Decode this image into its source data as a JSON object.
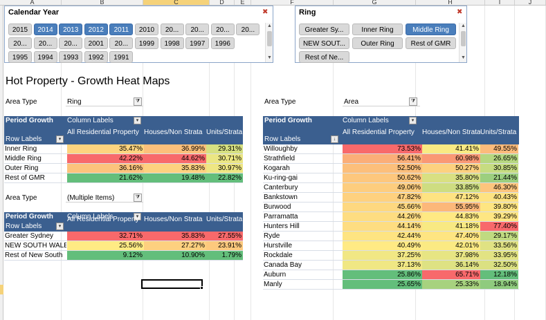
{
  "columns": [
    "A",
    "B",
    "C",
    "D",
    "E",
    "F",
    "G",
    "H",
    "I",
    "J"
  ],
  "calendar_slicer": {
    "title": "Calendar Year",
    "clear_icon": "filter-clear-icon",
    "items": [
      {
        "label": "2015",
        "on": false
      },
      {
        "label": "2014",
        "on": true
      },
      {
        "label": "2013",
        "on": true
      },
      {
        "label": "2012",
        "on": true
      },
      {
        "label": "2011",
        "on": true
      },
      {
        "label": "2010",
        "on": false
      },
      {
        "label": "20...",
        "on": false
      },
      {
        "label": "20...",
        "on": false
      },
      {
        "label": "20...",
        "on": false
      },
      {
        "label": "20...",
        "on": false
      },
      {
        "label": "20...",
        "on": false
      },
      {
        "label": "20...",
        "on": false
      },
      {
        "label": "20...",
        "on": false
      },
      {
        "label": "2001",
        "on": false
      },
      {
        "label": "20...",
        "on": false
      },
      {
        "label": "1999",
        "on": false
      },
      {
        "label": "1998",
        "on": false
      },
      {
        "label": "1997",
        "on": false
      },
      {
        "label": "1996",
        "on": false
      },
      {
        "label": "1995",
        "on": false
      },
      {
        "label": "1994",
        "on": false
      },
      {
        "label": "1993",
        "on": false
      },
      {
        "label": "1992",
        "on": false
      },
      {
        "label": "1991",
        "on": false
      }
    ]
  },
  "ring_slicer": {
    "title": "Ring",
    "clear_icon": "filter-clear-icon",
    "items": [
      {
        "label": "Greater Sy...",
        "on": false
      },
      {
        "label": "Inner Ring",
        "on": false
      },
      {
        "label": "Middle Ring",
        "on": true
      },
      {
        "label": "NEW SOUT...",
        "on": false
      },
      {
        "label": "Outer Ring",
        "on": false
      },
      {
        "label": "Rest of GMR",
        "on": false
      },
      {
        "label": "Rest of Ne...",
        "on": false
      }
    ]
  },
  "page_title": "Hot Property - Growth Heat Maps",
  "filter1": {
    "label": "Area Type",
    "value": "Ring"
  },
  "filter2": {
    "label": "Area Type",
    "value": "(Multiple Items)"
  },
  "filter3": {
    "label": "Area Type",
    "value": "Area"
  },
  "pivot_common": {
    "period_growth": "Period Growth",
    "column_labels": "Column Labels",
    "row_labels": "Row Labels",
    "col1": "All Residential Property",
    "col2": "Houses/Non Strata",
    "col3": "Units/Strata"
  },
  "colors": {
    "red": "#f8696b",
    "orange": "#fbaa77",
    "yellow": "#ffeb84",
    "lightgreen": "#c5dc81",
    "green": "#63be7b",
    "header": "#3b5f8f"
  },
  "pivot1": [
    {
      "name": "Inner Ring",
      "v": [
        "35.47%",
        "36.99%",
        "29.31%"
      ],
      "c": [
        "#fdd47f",
        "#fcc07b",
        "#d6e081"
      ]
    },
    {
      "name": "Middle Ring",
      "v": [
        "42.22%",
        "44.62%",
        "30.71%"
      ],
      "c": [
        "#f8696b",
        "#f8696b",
        "#ebe683"
      ]
    },
    {
      "name": "Outer Ring",
      "v": [
        "36.16%",
        "35.83%",
        "30.97%"
      ],
      "c": [
        "#fcc37c",
        "#fdd17f",
        "#eee683"
      ]
    },
    {
      "name": "Rest of GMR",
      "v": [
        "21.62%",
        "19.48%",
        "22.82%"
      ],
      "c": [
        "#63be7b",
        "#63be7b",
        "#63be7b"
      ]
    }
  ],
  "pivot2": [
    {
      "name": "Greater Sydney",
      "v": [
        "32.71%",
        "35.83%",
        "27.55%"
      ],
      "c": [
        "#f8696b",
        "#f8696b",
        "#f8696b"
      ]
    },
    {
      "name": "NEW SOUTH WALES",
      "v": [
        "25.56%",
        "27.27%",
        "23.91%"
      ],
      "c": [
        "#ffeb84",
        "#fdd07f",
        "#fdc97d"
      ]
    },
    {
      "name": "Rest of New South",
      "v": [
        "9.12%",
        "10.90%",
        "1.79%"
      ],
      "c": [
        "#63be7b",
        "#63be7b",
        "#63be7b"
      ]
    }
  ],
  "pivot3": [
    {
      "name": "Willoughby",
      "v": [
        "73.53%",
        "41.41%",
        "49.55%"
      ],
      "c": [
        "#f8696b",
        "#f9ea83",
        "#fcbb7b"
      ]
    },
    {
      "name": "Strathfield",
      "v": [
        "56.41%",
        "60.98%",
        "26.65%"
      ],
      "c": [
        "#fbae78",
        "#fa9874",
        "#b6d780"
      ]
    },
    {
      "name": "Kogarah",
      "v": [
        "52.50%",
        "50.27%",
        "30.85%"
      ],
      "c": [
        "#fcbf7b",
        "#fdd17f",
        "#c6dc81"
      ]
    },
    {
      "name": "Ku-ring-gai",
      "v": [
        "50.62%",
        "35.80%",
        "21.44%"
      ],
      "c": [
        "#fdc77d",
        "#d9e082",
        "#9ccf7f"
      ]
    },
    {
      "name": "Canterbury",
      "v": [
        "49.06%",
        "33.85%",
        "46.30%"
      ],
      "c": [
        "#fdcd7e",
        "#cedd81",
        "#fdc57d"
      ]
    },
    {
      "name": "Bankstown",
      "v": [
        "47.82%",
        "47.12%",
        "40.43%"
      ],
      "c": [
        "#fed17f",
        "#fee382",
        "#fee382"
      ]
    },
    {
      "name": "Burwood",
      "v": [
        "45.66%",
        "55.95%",
        "39.80%"
      ],
      "c": [
        "#fed880",
        "#fcb87a",
        "#fee582"
      ]
    },
    {
      "name": "Parramatta",
      "v": [
        "44.26%",
        "44.83%",
        "39.29%"
      ],
      "c": [
        "#fedd81",
        "#ffe983",
        "#fee683"
      ]
    },
    {
      "name": "Hunters Hill",
      "v": [
        "44.14%",
        "41.18%",
        "77.40%"
      ],
      "c": [
        "#fedd81",
        "#f8e983",
        "#f8696b"
      ]
    },
    {
      "name": "Ryde",
      "v": [
        "42.44%",
        "47.40%",
        "29.17%"
      ],
      "c": [
        "#fee482",
        "#fee582",
        "#c0da81"
      ]
    },
    {
      "name": "Hurstville",
      "v": [
        "40.49%",
        "42.01%",
        "33.56%"
      ],
      "c": [
        "#ffea84",
        "#fbea83",
        "#e0e283"
      ]
    },
    {
      "name": "Rockdale",
      "v": [
        "37.25%",
        "37.98%",
        "33.95%"
      ],
      "c": [
        "#f1e784",
        "#e7e583",
        "#e2e383"
      ]
    },
    {
      "name": "Canada Bay",
      "v": [
        "37.13%",
        "36.14%",
        "32.50%"
      ],
      "c": [
        "#f0e784",
        "#deE283",
        "#dbe182"
      ]
    },
    {
      "name": "Auburn",
      "v": [
        "25.86%",
        "65.71%",
        "12.18%"
      ],
      "c": [
        "#63be7b",
        "#f8696b",
        "#63be7b"
      ]
    },
    {
      "name": "Manly",
      "v": [
        "25.65%",
        "25.33%",
        "18.94%"
      ],
      "c": [
        "#63be7b",
        "#a7d27f",
        "#8fcb7e"
      ]
    }
  ],
  "scroll_up": "▲",
  "scroll_down": "▼",
  "dropdown_glyph": "▾",
  "sort_glyph": "↓"
}
